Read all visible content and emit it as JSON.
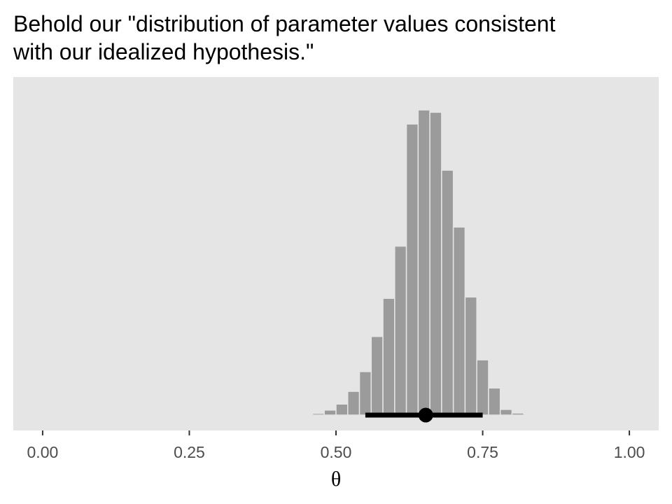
{
  "chart_data": {
    "type": "bar",
    "title": "Behold our \"distribution of parameter values consistent\nwith our idealized hypothesis.\"",
    "xlabel": "θ",
    "ylabel": "",
    "xlim": [
      -0.05,
      1.05
    ],
    "ylim": [
      0,
      1.0
    ],
    "x_ticks": [
      {
        "value": 0.0,
        "label": "0.00"
      },
      {
        "value": 0.25,
        "label": "0.25"
      },
      {
        "value": 0.5,
        "label": "0.50"
      },
      {
        "value": 0.75,
        "label": "0.75"
      },
      {
        "value": 1.0,
        "label": "1.00"
      }
    ],
    "bin_width": 0.02,
    "bins": [
      {
        "x_start": 0.44,
        "value": 0.002
      },
      {
        "x_start": 0.46,
        "value": 0.005
      },
      {
        "x_start": 0.48,
        "value": 0.015
      },
      {
        "x_start": 0.5,
        "value": 0.033
      },
      {
        "x_start": 0.52,
        "value": 0.071
      },
      {
        "x_start": 0.54,
        "value": 0.13
      },
      {
        "x_start": 0.56,
        "value": 0.235
      },
      {
        "x_start": 0.58,
        "value": 0.349
      },
      {
        "x_start": 0.6,
        "value": 0.505
      },
      {
        "x_start": 0.62,
        "value": 0.87
      },
      {
        "x_start": 0.64,
        "value": 0.912
      },
      {
        "x_start": 0.66,
        "value": 0.905
      },
      {
        "x_start": 0.68,
        "value": 0.732
      },
      {
        "x_start": 0.7,
        "value": 0.562
      },
      {
        "x_start": 0.72,
        "value": 0.353
      },
      {
        "x_start": 0.74,
        "value": 0.165
      },
      {
        "x_start": 0.76,
        "value": 0.081
      },
      {
        "x_start": 0.78,
        "value": 0.017
      },
      {
        "x_start": 0.8,
        "value": 0.006
      }
    ],
    "point_interval": {
      "point": 0.653,
      "lower": 0.55,
      "upper": 0.75
    },
    "grid": false,
    "legend": "none",
    "colors": {
      "panel_background": "#e5e5e5",
      "bar_fill": "#9b9b9b",
      "bar_outline": "#e5e5e5",
      "interval": "#000000",
      "tick": "#333333",
      "tick_label": "#4d4d4d"
    }
  }
}
